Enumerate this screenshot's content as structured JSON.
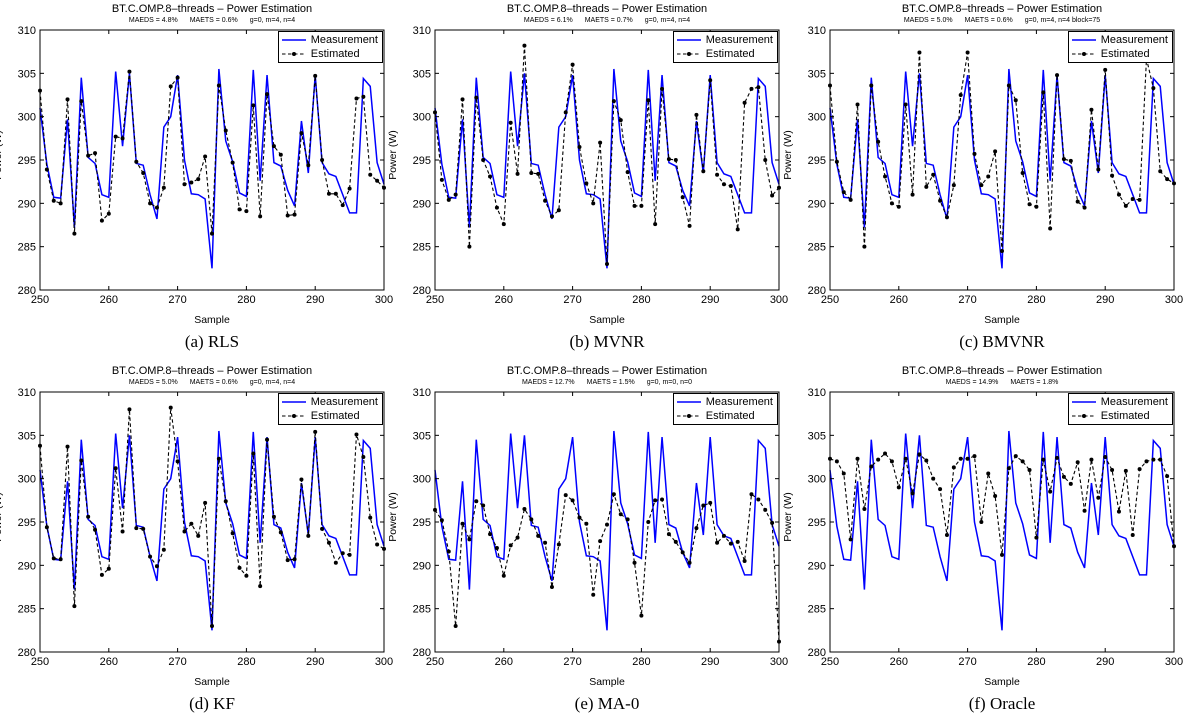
{
  "colors": {
    "measurement": "#0000ff",
    "estimated": "#000000"
  },
  "chart_data": [
    {
      "type": "line",
      "title": "BT.C.OMP.8–threads – Power Estimation",
      "stats": [
        "MAEDS = 4.8%",
        "MAETS = 0.6%",
        "g=0, m=4, n=4"
      ],
      "caption": "(a)  RLS",
      "xlabel": "Sample",
      "ylabel": "Power (W)",
      "xlim": [
        250,
        300
      ],
      "ylim": [
        280,
        310
      ],
      "xticks": [
        250,
        260,
        270,
        280,
        290,
        300
      ],
      "yticks": [
        280,
        285,
        290,
        295,
        300,
        305,
        310
      ],
      "legend": [
        "Measurement",
        "Estimated"
      ],
      "legend_position": "top-right",
      "series": [
        {
          "name": "Measurement",
          "style": "solid",
          "values": [
            301,
            294.5,
            290.7,
            290.6,
            299.7,
            287.2,
            304.5,
            295.3,
            294.6,
            291,
            290.7,
            305.2,
            296.6,
            305,
            294.6,
            294.4,
            291,
            288.2,
            298.8,
            300,
            304.8,
            295,
            291.1,
            291,
            290.5,
            282.5,
            305.5,
            297.2,
            294.8,
            291.2,
            290.8,
            305.4,
            292.6,
            304.8,
            294.7,
            294.3,
            291.5,
            289.7,
            299.5,
            293.5,
            304.8,
            294.7,
            293.4,
            293.1,
            291,
            288.9,
            288.9,
            304.4,
            303.5,
            294.7,
            292.2
          ]
        },
        {
          "name": "Estimated",
          "style": "dashed",
          "values": [
            303,
            293.9,
            290.3,
            290,
            302,
            286.5,
            301.8,
            295.5,
            295.8,
            288,
            288.8,
            297.7,
            297.5,
            305.2,
            294.8,
            293.5,
            290,
            289.5,
            291.8,
            303.5,
            304.5,
            292.2,
            292.4,
            292.8,
            295.4,
            286.5,
            303.6,
            298.4,
            294.7,
            289.3,
            289.1,
            301.3,
            288.5,
            302.6,
            296.6,
            295.6,
            288.6,
            288.7,
            298.1,
            294.4,
            304.7,
            295,
            291.1,
            291.1,
            289.8,
            291.7,
            302.1,
            302.3,
            293.3,
            292.6,
            291.8
          ]
        }
      ]
    },
    {
      "type": "line",
      "title": "BT.C.OMP.8–threads – Power Estimation",
      "stats": [
        "MAEDS = 6.1%",
        "MAETS = 0.7%",
        "g=0, m=4, n=4"
      ],
      "caption": "(b)  MVNR",
      "xlabel": "Sample",
      "ylabel": "Power (W)",
      "xlim": [
        250,
        300
      ],
      "ylim": [
        280,
        310
      ],
      "xticks": [
        250,
        260,
        270,
        280,
        290,
        300
      ],
      "yticks": [
        280,
        285,
        290,
        295,
        300,
        305,
        310
      ],
      "legend": [
        "Measurement",
        "Estimated"
      ],
      "legend_position": "top-right",
      "series": [
        {
          "name": "Measurement",
          "style": "solid",
          "values": [
            301,
            294.5,
            290.7,
            290.6,
            299.7,
            287.2,
            304.5,
            295.3,
            294.6,
            291,
            290.7,
            305.2,
            296.6,
            305,
            294.6,
            294.4,
            291,
            288.2,
            298.8,
            300,
            304.8,
            295,
            291.1,
            291,
            290.5,
            282.5,
            305.5,
            297.2,
            294.8,
            291.2,
            290.8,
            305.4,
            292.6,
            304.8,
            294.7,
            294.3,
            291.5,
            289.7,
            299.5,
            293.5,
            304.8,
            294.7,
            293.4,
            293.1,
            291,
            288.9,
            288.9,
            304.4,
            303.5,
            294.7,
            292.2
          ]
        },
        {
          "name": "Estimated",
          "style": "dashed",
          "values": [
            300.5,
            292.7,
            290.4,
            291,
            302,
            285,
            302.2,
            295,
            293.1,
            289.5,
            287.6,
            299.3,
            293.4,
            308.2,
            293.5,
            293.4,
            290.3,
            288.5,
            289.2,
            300.5,
            306,
            296.5,
            292.3,
            290,
            297,
            283,
            301.8,
            299.6,
            293.6,
            289.7,
            289.7,
            301.9,
            287.6,
            303.2,
            295.1,
            295,
            290.7,
            287.4,
            300.2,
            293.7,
            304.2,
            293.3,
            292.2,
            292,
            287,
            301.6,
            303.2,
            303.4,
            295,
            290.9,
            291.8
          ]
        }
      ]
    },
    {
      "type": "line",
      "title": "BT.C.OMP.8–threads – Power Estimation",
      "stats": [
        "MAEDS = 5.0%",
        "MAETS = 0.6%",
        "g=0, m=4, n=4 block=75"
      ],
      "caption": "(c)  BMVNR",
      "xlabel": "Sample",
      "ylabel": "Power (W)",
      "xlim": [
        250,
        300
      ],
      "ylim": [
        280,
        310
      ],
      "xticks": [
        250,
        260,
        270,
        280,
        290,
        300
      ],
      "yticks": [
        280,
        285,
        290,
        295,
        300,
        305,
        310
      ],
      "legend": [
        "Measurement",
        "Estimated"
      ],
      "legend_position": "top-right",
      "series": [
        {
          "name": "Measurement",
          "style": "solid",
          "values": [
            301,
            294.5,
            290.7,
            290.6,
            299.7,
            287.2,
            304.5,
            295.3,
            294.6,
            291,
            290.7,
            305.2,
            296.6,
            305,
            294.6,
            294.4,
            291,
            288.2,
            298.8,
            300,
            304.8,
            295,
            291.1,
            291,
            290.5,
            282.5,
            305.5,
            297.2,
            294.8,
            291.2,
            290.8,
            305.4,
            292.6,
            304.8,
            294.7,
            294.3,
            291.5,
            289.7,
            299.5,
            293.5,
            304.8,
            294.7,
            293.4,
            293.1,
            291,
            288.9,
            288.9,
            304.4,
            303.5,
            294.7,
            292.2
          ]
        },
        {
          "name": "Estimated",
          "style": "dashed",
          "values": [
            303.6,
            294.8,
            291.3,
            290.4,
            301.4,
            285,
            303.6,
            297.1,
            293.1,
            290,
            289.6,
            301.4,
            291,
            307.4,
            291.9,
            293.3,
            290.3,
            288.4,
            292.1,
            302.5,
            307.4,
            295.7,
            292.1,
            293.1,
            296,
            284.5,
            303.6,
            301.9,
            293.5,
            289.9,
            289.6,
            302.8,
            287.1,
            304.8,
            295.1,
            294.9,
            290.2,
            289.5,
            300.8,
            293.9,
            305.4,
            293.2,
            291,
            289.7,
            290.5,
            290.4,
            306.7,
            303.3,
            293.7,
            292.8,
            292.3
          ]
        }
      ]
    },
    {
      "type": "line",
      "title": "BT.C.OMP.8–threads – Power Estimation",
      "stats": [
        "MAEDS = 5.0%",
        "MAETS = 0.6%",
        "g=0, m=4, n=4"
      ],
      "caption": "(d)  KF",
      "xlabel": "Sample",
      "ylabel": "Power (W)",
      "xlim": [
        250,
        300
      ],
      "ylim": [
        280,
        310
      ],
      "xticks": [
        250,
        260,
        270,
        280,
        290,
        300
      ],
      "yticks": [
        280,
        285,
        290,
        295,
        300,
        305,
        310
      ],
      "legend": [
        "Measurement",
        "Estimated"
      ],
      "legend_position": "top-right",
      "series": [
        {
          "name": "Measurement",
          "style": "solid",
          "values": [
            301,
            294.5,
            290.7,
            290.6,
            299.7,
            287.2,
            304.5,
            295.3,
            294.6,
            291,
            290.7,
            305.2,
            296.6,
            305,
            294.6,
            294.4,
            291,
            288.2,
            298.8,
            300,
            304.8,
            295,
            291.1,
            291,
            290.5,
            282.5,
            305.5,
            297.2,
            294.8,
            291.2,
            290.8,
            305.4,
            292.6,
            304.8,
            294.7,
            294.3,
            291.5,
            289.7,
            299.5,
            293.5,
            304.8,
            294.7,
            293.4,
            293.1,
            291,
            288.9,
            288.9,
            304.4,
            303.5,
            294.7,
            292.2
          ]
        },
        {
          "name": "Estimated",
          "style": "dashed",
          "values": [
            303.8,
            294.4,
            290.8,
            290.7,
            303.7,
            285.3,
            302.1,
            295.6,
            294.1,
            288.9,
            289.6,
            301.2,
            293.9,
            308,
            294.3,
            294.2,
            291,
            289.9,
            291.8,
            308.2,
            302,
            293.9,
            294.8,
            293.4,
            297.2,
            283,
            302.3,
            297.4,
            293.7,
            289.7,
            288.8,
            302.9,
            287.6,
            304.5,
            295.6,
            293.8,
            290.6,
            290.7,
            299.9,
            293.4,
            305.4,
            294.2,
            292.6,
            290.3,
            291.4,
            291.2,
            305.1,
            302.5,
            295.5,
            292.4,
            291.9
          ]
        }
      ]
    },
    {
      "type": "line",
      "title": "BT.C.OMP.8–threads – Power Estimation",
      "stats": [
        "MAEDS = 12.7%",
        "MAETS = 1.5%",
        "g=0, m=0, n=0"
      ],
      "caption": "(e)  MA-0",
      "xlabel": "Sample",
      "ylabel": "Power (W)",
      "xlim": [
        250,
        300
      ],
      "ylim": [
        280,
        310
      ],
      "xticks": [
        250,
        260,
        270,
        280,
        290,
        300
      ],
      "yticks": [
        280,
        285,
        290,
        295,
        300,
        305,
        310
      ],
      "legend": [
        "Measurement",
        "Estimated"
      ],
      "legend_position": "top-right",
      "series": [
        {
          "name": "Measurement",
          "style": "solid",
          "values": [
            301,
            294.5,
            290.7,
            290.6,
            299.7,
            287.2,
            304.5,
            295.3,
            294.6,
            291,
            290.7,
            305.2,
            296.6,
            305,
            294.6,
            294.4,
            291,
            288.2,
            298.8,
            300,
            304.8,
            295,
            291.1,
            291,
            290.5,
            282.5,
            305.5,
            297.2,
            294.8,
            291.2,
            290.8,
            305.4,
            292.6,
            304.8,
            294.7,
            294.3,
            291.5,
            289.7,
            299.5,
            293.5,
            304.8,
            294.7,
            293.4,
            293.1,
            291,
            288.9,
            288.9,
            304.4,
            303.5,
            294.7,
            292.2
          ]
        },
        {
          "name": "Estimated",
          "style": "dashed",
          "values": [
            296.4,
            295.2,
            291.6,
            283,
            294.8,
            293,
            297.4,
            296.9,
            293.6,
            292,
            288.8,
            292.3,
            293.2,
            296.5,
            295.3,
            293.4,
            292.6,
            287.5,
            292.4,
            298.1,
            297.5,
            295.5,
            294.8,
            286.6,
            292.8,
            294.7,
            298.2,
            295.9,
            295.3,
            290.3,
            284.2,
            295,
            297.5,
            297.6,
            293.6,
            292.7,
            291.5,
            290.3,
            294.3,
            296.9,
            297.2,
            292.6,
            293.4,
            292.5,
            292.7,
            290.5,
            298.2,
            297.6,
            296.4,
            294.9,
            281.2
          ]
        }
      ]
    },
    {
      "type": "line",
      "title": "BT.C.OMP.8–threads – Power Estimation",
      "stats": [
        "MAEDS = 14.9%",
        "MAETS = 1.8%"
      ],
      "caption": "(f)  Oracle",
      "xlabel": "Sample",
      "ylabel": "Power (W)",
      "xlim": [
        250,
        300
      ],
      "ylim": [
        280,
        310
      ],
      "xticks": [
        250,
        260,
        270,
        280,
        290,
        300
      ],
      "yticks": [
        280,
        285,
        290,
        295,
        300,
        305,
        310
      ],
      "legend": [
        "Measurement",
        "Estimated"
      ],
      "legend_position": "top-right",
      "series": [
        {
          "name": "Measurement",
          "style": "solid",
          "values": [
            301,
            294.5,
            290.7,
            290.6,
            299.7,
            287.2,
            304.5,
            295.3,
            294.6,
            291,
            290.7,
            305.2,
            296.6,
            305,
            294.6,
            294.4,
            291,
            288.2,
            298.8,
            300,
            304.8,
            295,
            291.1,
            291,
            290.5,
            282.5,
            305.5,
            297.2,
            294.8,
            291.2,
            290.8,
            305.4,
            292.6,
            304.8,
            294.7,
            294.3,
            291.5,
            289.7,
            299.5,
            293.5,
            304.8,
            294.7,
            293.4,
            293.1,
            291,
            288.9,
            288.9,
            304.4,
            303.5,
            294.7,
            292.2
          ]
        },
        {
          "name": "Estimated",
          "style": "dashed",
          "values": [
            302.3,
            302,
            300.6,
            293,
            302.3,
            296.5,
            301.4,
            302.2,
            302.9,
            302,
            299,
            302.3,
            298.3,
            302.8,
            302.1,
            300,
            298.8,
            293.5,
            301.3,
            302.3,
            302.3,
            302.6,
            295,
            300.6,
            298,
            291.2,
            301.2,
            302.6,
            302,
            301,
            293.2,
            302.2,
            298.5,
            302.4,
            300.2,
            299.4,
            301.9,
            296.3,
            302.2,
            297.8,
            302.5,
            301,
            296.2,
            300.9,
            293.5,
            301.1,
            302,
            302.2,
            302.2,
            300.3,
            292.2
          ]
        }
      ]
    }
  ]
}
